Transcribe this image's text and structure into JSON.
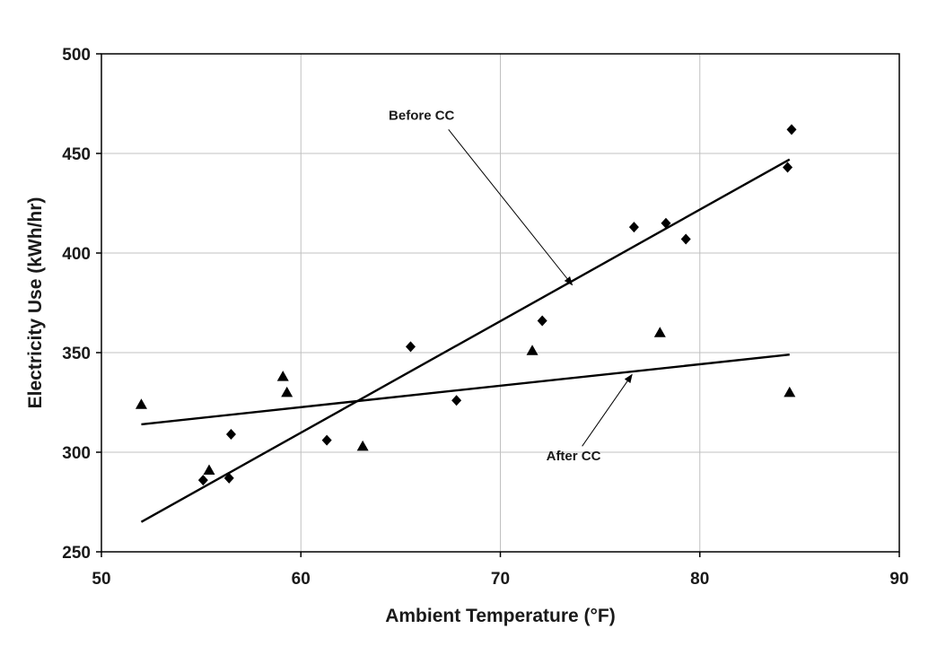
{
  "chart_data": {
    "type": "scatter",
    "xlabel": "Ambient Temperature (°F)",
    "ylabel": "Electricity Use (kWh/hr)",
    "xlim": [
      50,
      90
    ],
    "ylim": [
      250,
      500
    ],
    "xticks": [
      50,
      60,
      70,
      80,
      90
    ],
    "yticks": [
      250,
      300,
      350,
      400,
      450,
      500
    ],
    "grid": true,
    "legend": "none",
    "series": [
      {
        "marker": "diamond",
        "points": [
          [
            55.1,
            286
          ],
          [
            56.4,
            287
          ],
          [
            56.5,
            309
          ],
          [
            61.3,
            306
          ],
          [
            65.5,
            353
          ],
          [
            67.8,
            326
          ],
          [
            72.1,
            366
          ],
          [
            76.7,
            413
          ],
          [
            78.3,
            415
          ],
          [
            79.3,
            407
          ],
          [
            84.4,
            443
          ],
          [
            84.6,
            462
          ]
        ],
        "trendline": [
          [
            52,
            265
          ],
          [
            84.5,
            447
          ]
        ]
      },
      {
        "marker": "triangle",
        "points": [
          [
            52.0,
            324
          ],
          [
            55.4,
            291
          ],
          [
            59.1,
            338
          ],
          [
            59.3,
            330
          ],
          [
            63.1,
            303
          ],
          [
            71.6,
            351
          ],
          [
            78.0,
            360
          ],
          [
            84.5,
            330
          ]
        ],
        "trendline": [
          [
            52,
            314
          ],
          [
            84.5,
            349
          ]
        ]
      }
    ],
    "annotations": [
      {
        "text": "Before CC",
        "text_at": [
          64.4,
          467
        ],
        "arrow_from": [
          67.4,
          462
        ],
        "arrow_to": [
          73.6,
          384
        ]
      },
      {
        "text": "After CC",
        "text_at": [
          72.3,
          296
        ],
        "arrow_from": [
          74.1,
          303
        ],
        "arrow_to": [
          76.6,
          339
        ]
      }
    ]
  },
  "colors": {
    "marker": "#000000",
    "line": "#000000",
    "grid": "#c0c0c0",
    "axis": "#000000"
  }
}
